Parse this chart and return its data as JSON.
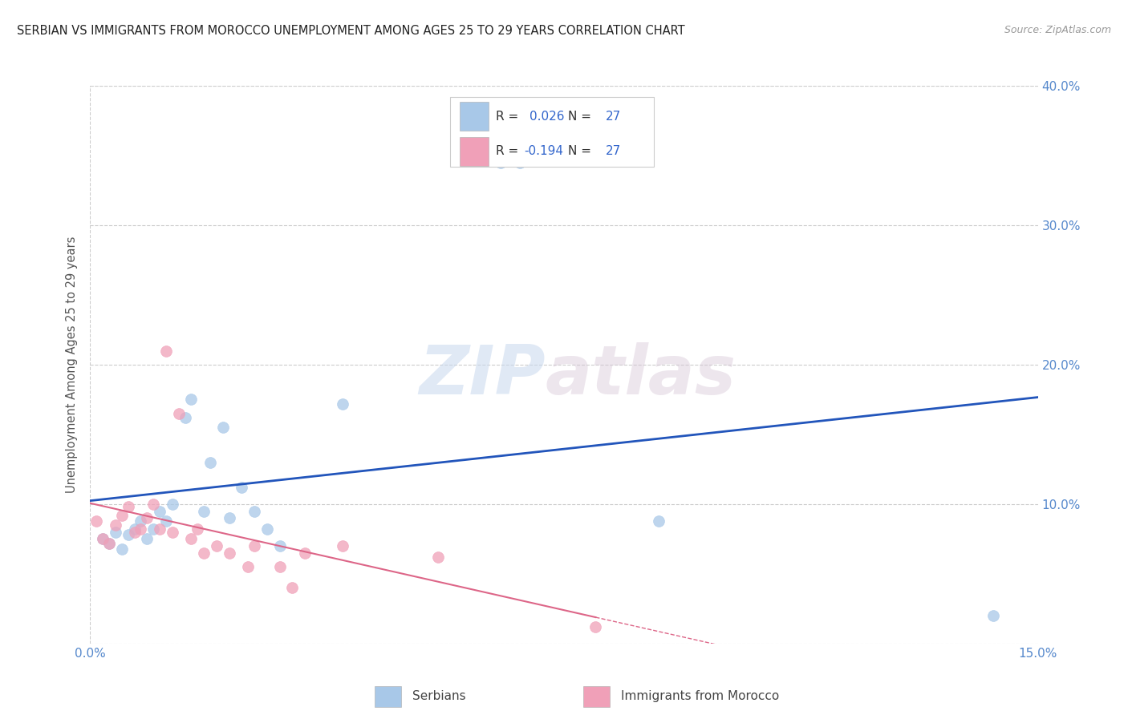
{
  "title": "SERBIAN VS IMMIGRANTS FROM MOROCCO UNEMPLOYMENT AMONG AGES 25 TO 29 YEARS CORRELATION CHART",
  "source": "Source: ZipAtlas.com",
  "ylabel": "Unemployment Among Ages 25 to 29 years",
  "xlim": [
    0.0,
    0.15
  ],
  "ylim": [
    0.0,
    0.4
  ],
  "xticks": [
    0.0,
    0.05,
    0.1,
    0.15
  ],
  "xticklabels": [
    "0.0%",
    "",
    "",
    "15.0%"
  ],
  "yticks": [
    0.0,
    0.1,
    0.2,
    0.3,
    0.4
  ],
  "right_yticklabels": [
    "",
    "10.0%",
    "20.0%",
    "30.0%",
    "40.0%"
  ],
  "serbian_color": "#a8c8e8",
  "moroccan_color": "#f0a0b8",
  "serbian_line_color": "#2255bb",
  "moroccan_line_color": "#dd6688",
  "legend_serbian_R": "0.026",
  "legend_moroccan_R": "-0.194",
  "legend_N": "27",
  "watermark_zip": "ZIP",
  "watermark_atlas": "atlas",
  "background_color": "#ffffff",
  "grid_color": "#cccccc",
  "title_fontsize": 10.5,
  "axis_tick_color": "#5588cc",
  "marker_size": 100,
  "serbian_x": [
    0.002,
    0.003,
    0.004,
    0.005,
    0.006,
    0.007,
    0.008,
    0.009,
    0.01,
    0.011,
    0.012,
    0.013,
    0.015,
    0.016,
    0.018,
    0.019,
    0.021,
    0.022,
    0.024,
    0.026,
    0.028,
    0.03,
    0.04,
    0.065,
    0.068,
    0.09,
    0.143
  ],
  "serbian_y": [
    0.075,
    0.072,
    0.08,
    0.068,
    0.078,
    0.082,
    0.088,
    0.075,
    0.082,
    0.095,
    0.088,
    0.1,
    0.162,
    0.175,
    0.095,
    0.13,
    0.155,
    0.09,
    0.112,
    0.095,
    0.082,
    0.07,
    0.172,
    0.345,
    0.345,
    0.088,
    0.02
  ],
  "moroccan_x": [
    0.001,
    0.002,
    0.003,
    0.004,
    0.005,
    0.006,
    0.007,
    0.008,
    0.009,
    0.01,
    0.011,
    0.012,
    0.013,
    0.014,
    0.016,
    0.017,
    0.018,
    0.02,
    0.022,
    0.025,
    0.026,
    0.03,
    0.032,
    0.034,
    0.04,
    0.055,
    0.08
  ],
  "moroccan_y": [
    0.088,
    0.075,
    0.072,
    0.085,
    0.092,
    0.098,
    0.08,
    0.082,
    0.09,
    0.1,
    0.082,
    0.21,
    0.08,
    0.165,
    0.075,
    0.082,
    0.065,
    0.07,
    0.065,
    0.055,
    0.07,
    0.055,
    0.04,
    0.065,
    0.07,
    0.062,
    0.012
  ]
}
